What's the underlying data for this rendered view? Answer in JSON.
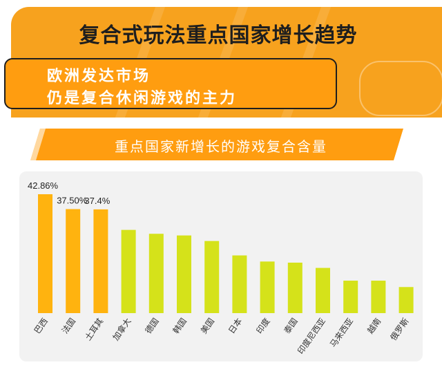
{
  "header": {
    "title": "复合式玩法重点国家增长趋势",
    "subtitle_line1": "欧洲发达市场",
    "subtitle_line2": "仍是复合休闲游戏的主力"
  },
  "colors": {
    "banner": "#f7a21e",
    "subtitle_box": "#ff9d10",
    "highlight_bar": "#ffb30f",
    "other_bar": "#d5e21a"
  },
  "chart_data": {
    "type": "bar",
    "title": "重点国家新增长的游戏复合含量",
    "xlabel": "",
    "ylabel": "",
    "categories": [
      "巴西",
      "法国",
      "土耳其",
      "加拿大",
      "德国",
      "韩国",
      "美国",
      "日本",
      "印度",
      "泰国",
      "印度尼西亚",
      "马来西亚",
      "越南",
      "俄罗斯"
    ],
    "values": [
      42.86,
      37.5,
      37.4,
      30.0,
      28.6,
      28.0,
      26.0,
      20.8,
      18.6,
      18.2,
      16.3,
      11.7,
      11.7,
      9.4
    ],
    "labels": [
      "42.86%",
      "37.50%",
      "37.4%",
      "",
      "",
      "",
      "",
      "",
      "",
      "",
      "",
      "",
      "",
      ""
    ],
    "highlight_count": 3,
    "ylim": [
      0,
      45
    ],
    "grid": false,
    "legend": "none"
  }
}
